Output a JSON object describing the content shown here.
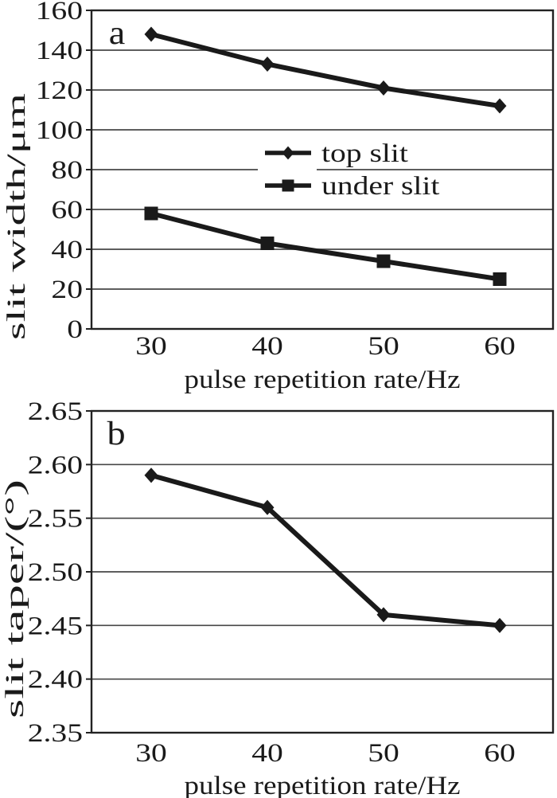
{
  "figure": {
    "background": "#ffffff",
    "ink_color": "#1a1a1a",
    "grid_color": "#474747",
    "border_color": "#222222",
    "panel_letters": [
      "a",
      "b"
    ]
  },
  "chart_data": [
    {
      "type": "line",
      "panel_label": "a",
      "title": "",
      "xlabel": "pulse repetition rate/Hz",
      "ylabel": "slit width/μm",
      "x": [
        30,
        40,
        50,
        60
      ],
      "x_tick_labels": [
        "30",
        "40",
        "50",
        "60"
      ],
      "ylim": [
        0,
        160
      ],
      "y_ticks": [
        0,
        20,
        40,
        60,
        80,
        100,
        120,
        140,
        160
      ],
      "y_tick_labels": [
        "0",
        "20",
        "40",
        "60",
        "80",
        "100",
        "120",
        "140",
        "160"
      ],
      "grid": "horizontal",
      "legend_position": "inside-center",
      "series": [
        {
          "name": "top slit",
          "marker": "diamond",
          "values": [
            148,
            133,
            121,
            112
          ]
        },
        {
          "name": "under slit",
          "marker": "square",
          "values": [
            58,
            43,
            34,
            25
          ]
        }
      ]
    },
    {
      "type": "line",
      "panel_label": "b",
      "title": "",
      "xlabel": "pulse repetition rate/Hz",
      "ylabel": "slit taper/(°)",
      "x": [
        30,
        40,
        50,
        60
      ],
      "x_tick_labels": [
        "30",
        "40",
        "50",
        "60"
      ],
      "ylim": [
        2.35,
        2.65
      ],
      "y_ticks": [
        2.35,
        2.4,
        2.45,
        2.5,
        2.55,
        2.6,
        2.65
      ],
      "y_tick_labels": [
        "2.35",
        "2.40",
        "2.45",
        "2.50",
        "2.55",
        "2.60",
        "2.65"
      ],
      "grid": "horizontal",
      "legend_position": null,
      "series": [
        {
          "name": "slit taper",
          "marker": "diamond",
          "values": [
            2.59,
            2.56,
            2.46,
            2.45
          ]
        }
      ]
    }
  ]
}
